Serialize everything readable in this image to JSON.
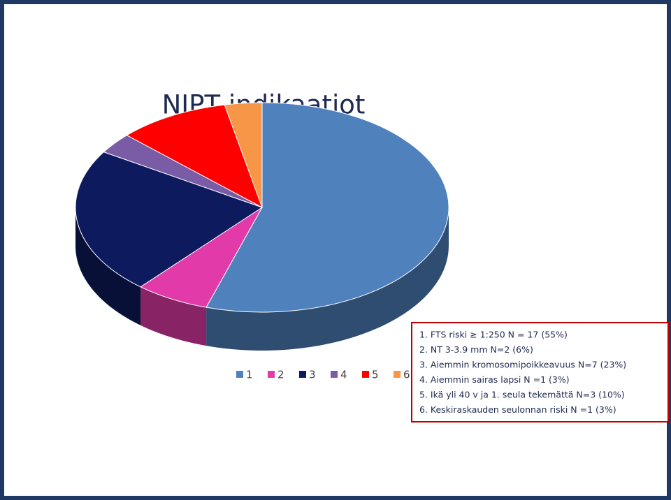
{
  "chart_data": {
    "type": "pie",
    "title": "NIPT indikaatiot",
    "categories": [
      "1",
      "2",
      "3",
      "4",
      "5",
      "6"
    ],
    "values": [
      17,
      2,
      7,
      1,
      3,
      1
    ],
    "colors": [
      "#4f81bd",
      "#e23aa8",
      "#0d1b5e",
      "#7a5ca6",
      "#ff0000",
      "#f79646"
    ],
    "legend": "bottom",
    "notes": [
      "1.  FTS riski ≥ 1:250    N = 17 (55%)",
      "2.  NT 3-3.9 mm   N=2 (6%)",
      "3.  Aiemmin kromosomipoikkeavuus N=7 (23%)",
      "4.  Aiemmin sairas lapsi N =1 (3%)",
      "5.  Ikä yli 40 v ja 1. seula tekemättä  N=3  (10%)",
      "6.  Keskiraskauden seulonnan riski N =1 (3%)"
    ]
  }
}
